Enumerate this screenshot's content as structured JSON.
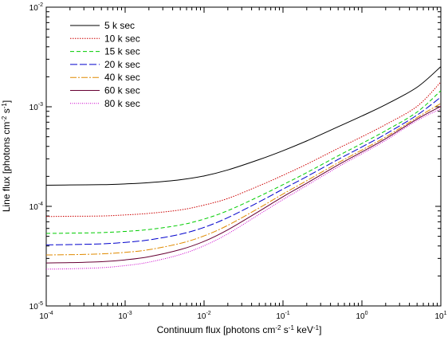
{
  "chart_data": {
    "type": "line",
    "xlabel": "Continuum flux [photons cm$^{-2}$ s$^{-1}$ keV$^{-1}$]",
    "ylabel": "Line flux [photons cm$^{-2}$ s$^{-1}$]",
    "xscale": "log",
    "yscale": "log",
    "xlim": [
      0.0001,
      10
    ],
    "ylim": [
      1e-05,
      0.01
    ],
    "x_ticks": [
      {
        "value": 0.0001,
        "base": "10",
        "exp": "-4"
      },
      {
        "value": 0.001,
        "base": "10",
        "exp": "-3"
      },
      {
        "value": 0.01,
        "base": "10",
        "exp": "-2"
      },
      {
        "value": 0.1,
        "base": "10",
        "exp": "-1"
      },
      {
        "value": 1,
        "base": "10",
        "exp": "0"
      },
      {
        "value": 10,
        "base": "10",
        "exp": "1"
      }
    ],
    "y_ticks": [
      {
        "value": 1e-05,
        "base": "10",
        "exp": "-5"
      },
      {
        "value": 0.0001,
        "base": "10",
        "exp": "-4"
      },
      {
        "value": 0.001,
        "base": "10",
        "exp": "-3"
      },
      {
        "value": 0.01,
        "base": "10",
        "exp": "-2"
      }
    ],
    "legend_position": "top-left",
    "grid": false,
    "x": [
      0.0001,
      0.0002,
      0.0005,
      0.001,
      0.002,
      0.005,
      0.01,
      0.02,
      0.05,
      0.1,
      0.2,
      0.5,
      1,
      2,
      5,
      10
    ],
    "series": [
      {
        "name": "5  k sec",
        "color": "#000000",
        "dash": "",
        "values": [
          0.000163,
          0.000164,
          0.000165,
          0.000168,
          0.000173,
          0.000185,
          0.000202,
          0.000232,
          0.000295,
          0.000362,
          0.000454,
          0.00063,
          0.000808,
          0.00105,
          0.00157,
          0.00253
        ]
      },
      {
        "name": "10 k sec",
        "color": "#cc0000",
        "dash": "1.5,1.5",
        "values": [
          7.9e-05,
          7.95e-05,
          8e-05,
          8.2e-05,
          8.5e-05,
          9.2e-05,
          0.000103,
          0.00012,
          0.000161,
          0.000205,
          0.000265,
          0.000382,
          0.0005,
          0.000663,
          0.00101,
          0.00177
        ]
      },
      {
        "name": "15 k sec",
        "color": "#00cc00",
        "dash": "5,3",
        "values": [
          5.35e-05,
          5.38e-05,
          5.45e-05,
          5.6e-05,
          5.85e-05,
          6.5e-05,
          7.45e-05,
          9.05e-05,
          0.000126,
          0.000165,
          0.000218,
          0.000322,
          0.000428,
          0.000575,
          0.000885,
          0.00145
        ]
      },
      {
        "name": "20 k sec",
        "color": "#0000cc",
        "dash": "9,3",
        "values": [
          4.1e-05,
          4.13e-05,
          4.2e-05,
          4.35e-05,
          4.6e-05,
          5.25e-05,
          6.15e-05,
          7.7e-05,
          0.000111,
          0.000149,
          0.000199,
          0.000296,
          0.000395,
          0.000532,
          0.000825,
          0.00125
        ]
      },
      {
        "name": "40 k sec",
        "color": "#e08a00",
        "dash": "8,2,2,2",
        "values": [
          3.25e-05,
          3.27e-05,
          3.33e-05,
          3.45e-05,
          3.67e-05,
          4.25e-05,
          5.05e-05,
          6.45e-05,
          9.65e-05,
          0.000133,
          0.000181,
          0.000274,
          0.000368,
          0.000498,
          0.00078,
          0.00108
        ]
      },
      {
        "name": "60 k sec",
        "color": "#660033",
        "dash": "",
        "values": [
          2.7e-05,
          2.72e-05,
          2.78e-05,
          2.9e-05,
          3.12e-05,
          3.68e-05,
          4.45e-05,
          5.82e-05,
          8.95e-05,
          0.000125,
          0.000171,
          0.000261,
          0.000352,
          0.000478,
          0.000752,
          0.00101
        ]
      },
      {
        "name": "80 k sec",
        "color": "#cc00cc",
        "dash": "1,1.5",
        "values": [
          2.34e-05,
          2.36e-05,
          2.42e-05,
          2.54e-05,
          2.75e-05,
          3.28e-05,
          4.02e-05,
          5.3e-05,
          8.32e-05,
          0.000117,
          0.000162,
          0.000249,
          0.000338,
          0.00046,
          0.000728,
          0.00095
        ]
      }
    ]
  }
}
